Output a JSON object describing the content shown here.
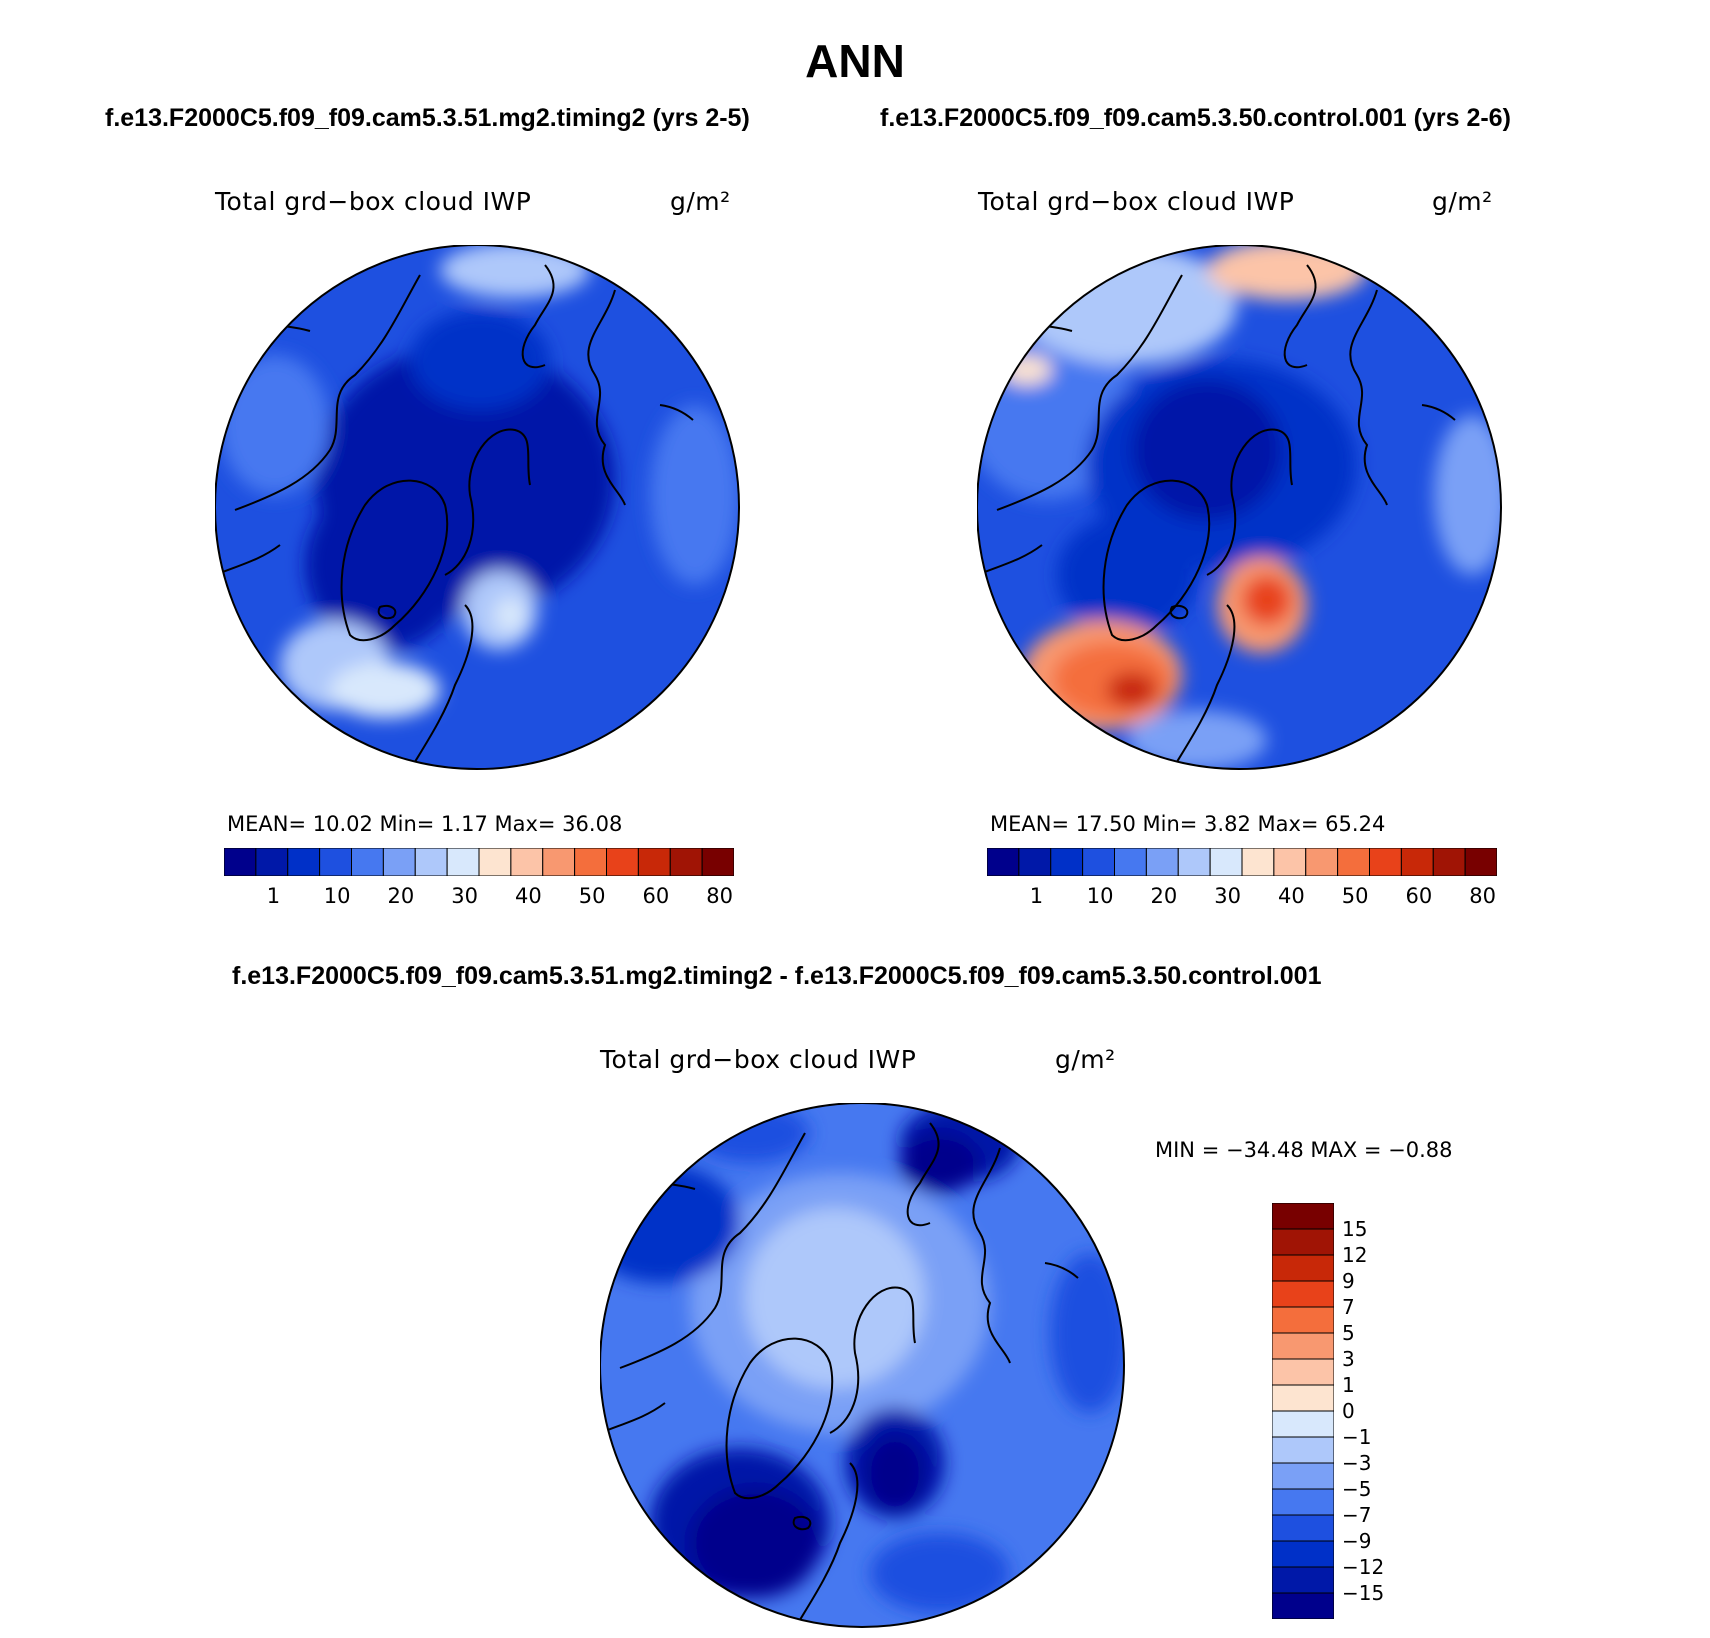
{
  "title": "ANN",
  "top_left_subtitle": "f.e13.F2000C5.f09_f09.cam5.3.51.mg2.timing2 (yrs 2-5)",
  "top_right_subtitle": "f.e13.F2000C5.f09_f09.cam5.3.50.control.001 (yrs 2-6)",
  "diff_subtitle": "f.e13.F2000C5.f09_f09.cam5.3.51.mg2.timing2 - f.e13.F2000C5.f09_f09.cam5.3.50.control.001",
  "panels": {
    "test": {
      "variable": "Total grd−box cloud IWP",
      "units": "g/m²",
      "stats": "MEAN=   10.02   Min=     1.17   Max=   36.08"
    },
    "control": {
      "variable": "Total grd−box cloud IWP",
      "units": "g/m²",
      "stats": "MEAN=   17.50   Min=     3.82   Max=   65.24"
    },
    "diff": {
      "variable": "Total grd−box cloud IWP",
      "units": "g/m²",
      "stats": "MIN = −34.48 MAX =   −0.88"
    }
  },
  "field_colorbar": {
    "labels": [
      "1",
      "10",
      "20",
      "30",
      "40",
      "50",
      "60",
      "80"
    ],
    "colors": [
      "#00008c",
      "#0018a8",
      "#0030c8",
      "#1e50e0",
      "#4678f0",
      "#7aa0f6",
      "#aec8fa",
      "#d8e8fc",
      "#fde4d0",
      "#fcc4a8",
      "#f89870",
      "#f46e3c",
      "#e8421a",
      "#c82808",
      "#a01405",
      "#780000"
    ]
  },
  "diff_colorbar": {
    "labels": [
      "15",
      "12",
      "9",
      "7",
      "5",
      "3",
      "1",
      "0",
      "−1",
      "−3",
      "−5",
      "−7",
      "−9",
      "−12",
      "−15"
    ],
    "colors": [
      "#780000",
      "#a01405",
      "#c82808",
      "#e8421a",
      "#f46e3c",
      "#f89870",
      "#fcc4a8",
      "#fde4d0",
      "#d8e8fc",
      "#aec8fa",
      "#7aa0f6",
      "#4678f0",
      "#1e50e0",
      "#0030c8",
      "#0018a8",
      "#00008c"
    ]
  }
}
